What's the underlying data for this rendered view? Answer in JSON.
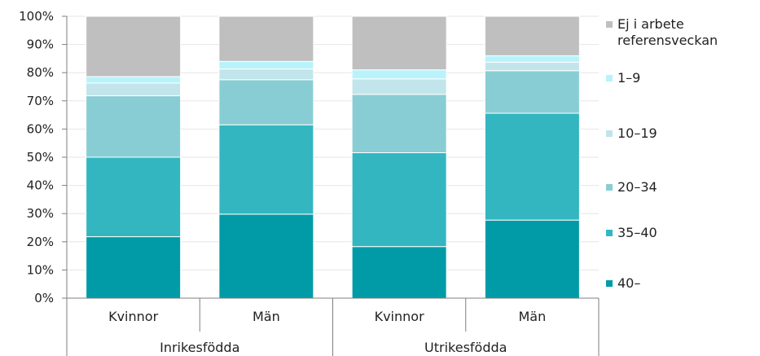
{
  "chart_data": {
    "type": "bar",
    "stacked": true,
    "percent": true,
    "ylim": [
      0,
      100
    ],
    "yticks": [
      "0%",
      "10%",
      "20%",
      "30%",
      "40%",
      "50%",
      "60%",
      "70%",
      "80%",
      "90%",
      "100%"
    ],
    "categories": [
      "Kvinnor",
      "Män",
      "Kvinnor",
      "Män"
    ],
    "groups": [
      {
        "label": "Inrikesfödda",
        "span": [
          0,
          1
        ]
      },
      {
        "label": "Utrikesfödda",
        "span": [
          2,
          3
        ]
      }
    ],
    "grid": "horizontal",
    "legend_position": "right",
    "series": [
      {
        "name": "40–",
        "color": "#009ba6",
        "values": [
          21.8,
          29.8,
          18.3,
          27.7
        ]
      },
      {
        "name": "35–40",
        "color": "#33b6c0",
        "values": [
          28.2,
          31.7,
          33.3,
          37.9
        ]
      },
      {
        "name": "20–34",
        "color": "#88cdd4",
        "values": [
          21.8,
          16.0,
          20.7,
          15.1
        ]
      },
      {
        "name": "10–19",
        "color": "#c1e5ea",
        "values": [
          4.5,
          3.8,
          5.5,
          3.0
        ]
      },
      {
        "name": "1–9",
        "color": "#b8f3fb",
        "values": [
          2.3,
          2.7,
          3.2,
          2.3
        ]
      },
      {
        "name": "Ej i arbete\nreferensveckan",
        "color": "#bfbfbf",
        "values": [
          21.4,
          16.0,
          19.0,
          14.0
        ]
      }
    ]
  }
}
